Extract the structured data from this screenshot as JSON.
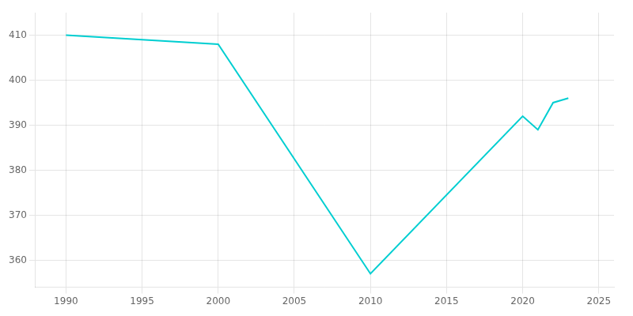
{
  "chart_data": {
    "type": "line",
    "x": [
      1990,
      2000,
      2010,
      2020,
      2021,
      2022,
      2023
    ],
    "values": [
      410,
      408,
      357,
      392,
      389,
      395,
      396
    ],
    "color": "#00CED1",
    "xlim": [
      1988,
      2026
    ],
    "ylim": [
      354,
      415
    ],
    "xticks": [
      1990,
      1995,
      2000,
      2005,
      2010,
      2015,
      2020,
      2025
    ],
    "yticks": [
      360,
      370,
      380,
      390,
      400,
      410
    ],
    "grid": true
  }
}
